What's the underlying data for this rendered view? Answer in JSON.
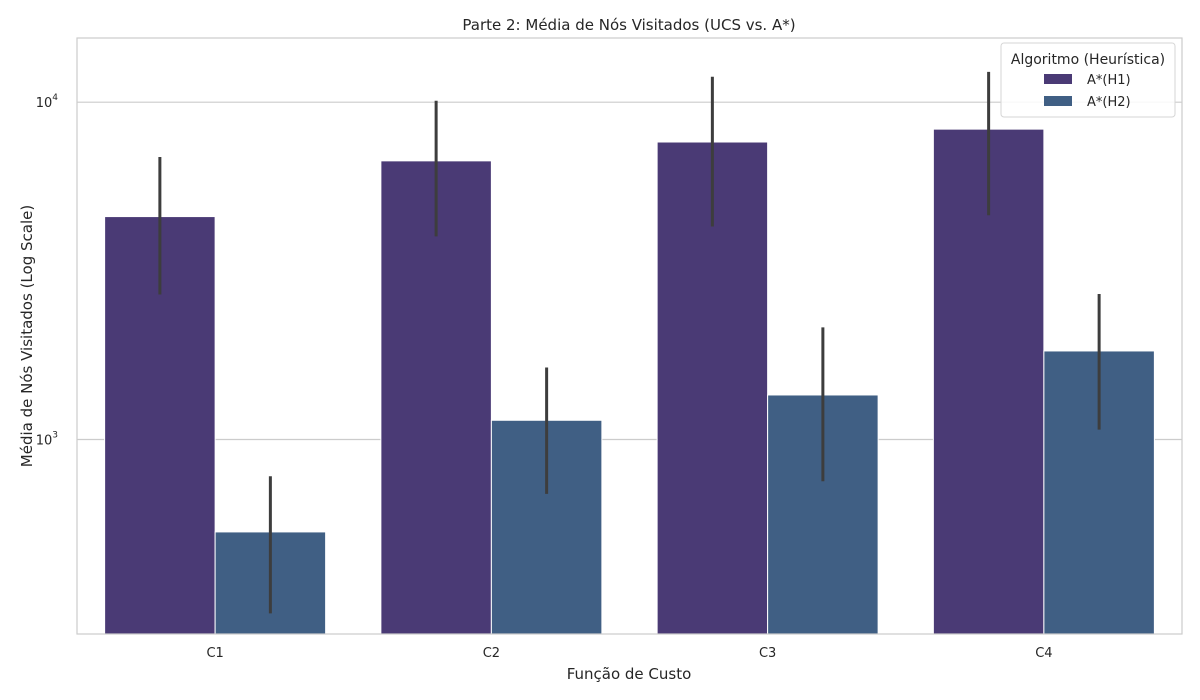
{
  "chart_data": {
    "type": "bar",
    "title": "Parte 2: Média de Nós Visitados (UCS vs. A*)",
    "xlabel": "Função de Custo",
    "ylabel": "Média de Nós Visitados (Log Scale)",
    "yscale": "log",
    "ylim": [
      265,
      15500
    ],
    "yticks": [
      {
        "value": 1000,
        "base": "10",
        "exp": "3"
      },
      {
        "value": 10000,
        "base": "10",
        "exp": "4"
      }
    ],
    "categories": [
      "C1",
      "C2",
      "C3",
      "C4"
    ],
    "legend_title": "Algoritmo (Heurística)",
    "legend_position": "top-right",
    "grid": "horizontal",
    "series": [
      {
        "name": "A*(H1)",
        "color": "#4a3a75",
        "values": [
          4580,
          6700,
          7620,
          8320
        ],
        "error_low": [
          2690,
          4000,
          4280,
          4620
        ],
        "error_high": [
          6880,
          10100,
          11900,
          12300
        ]
      },
      {
        "name": "A*(H2)",
        "color": "#405f84",
        "values": [
          532,
          1140,
          1355,
          1830
        ],
        "error_low": [
          305,
          690,
          752,
          1070
        ],
        "error_high": [
          778,
          1635,
          2150,
          2700
        ]
      }
    ]
  }
}
